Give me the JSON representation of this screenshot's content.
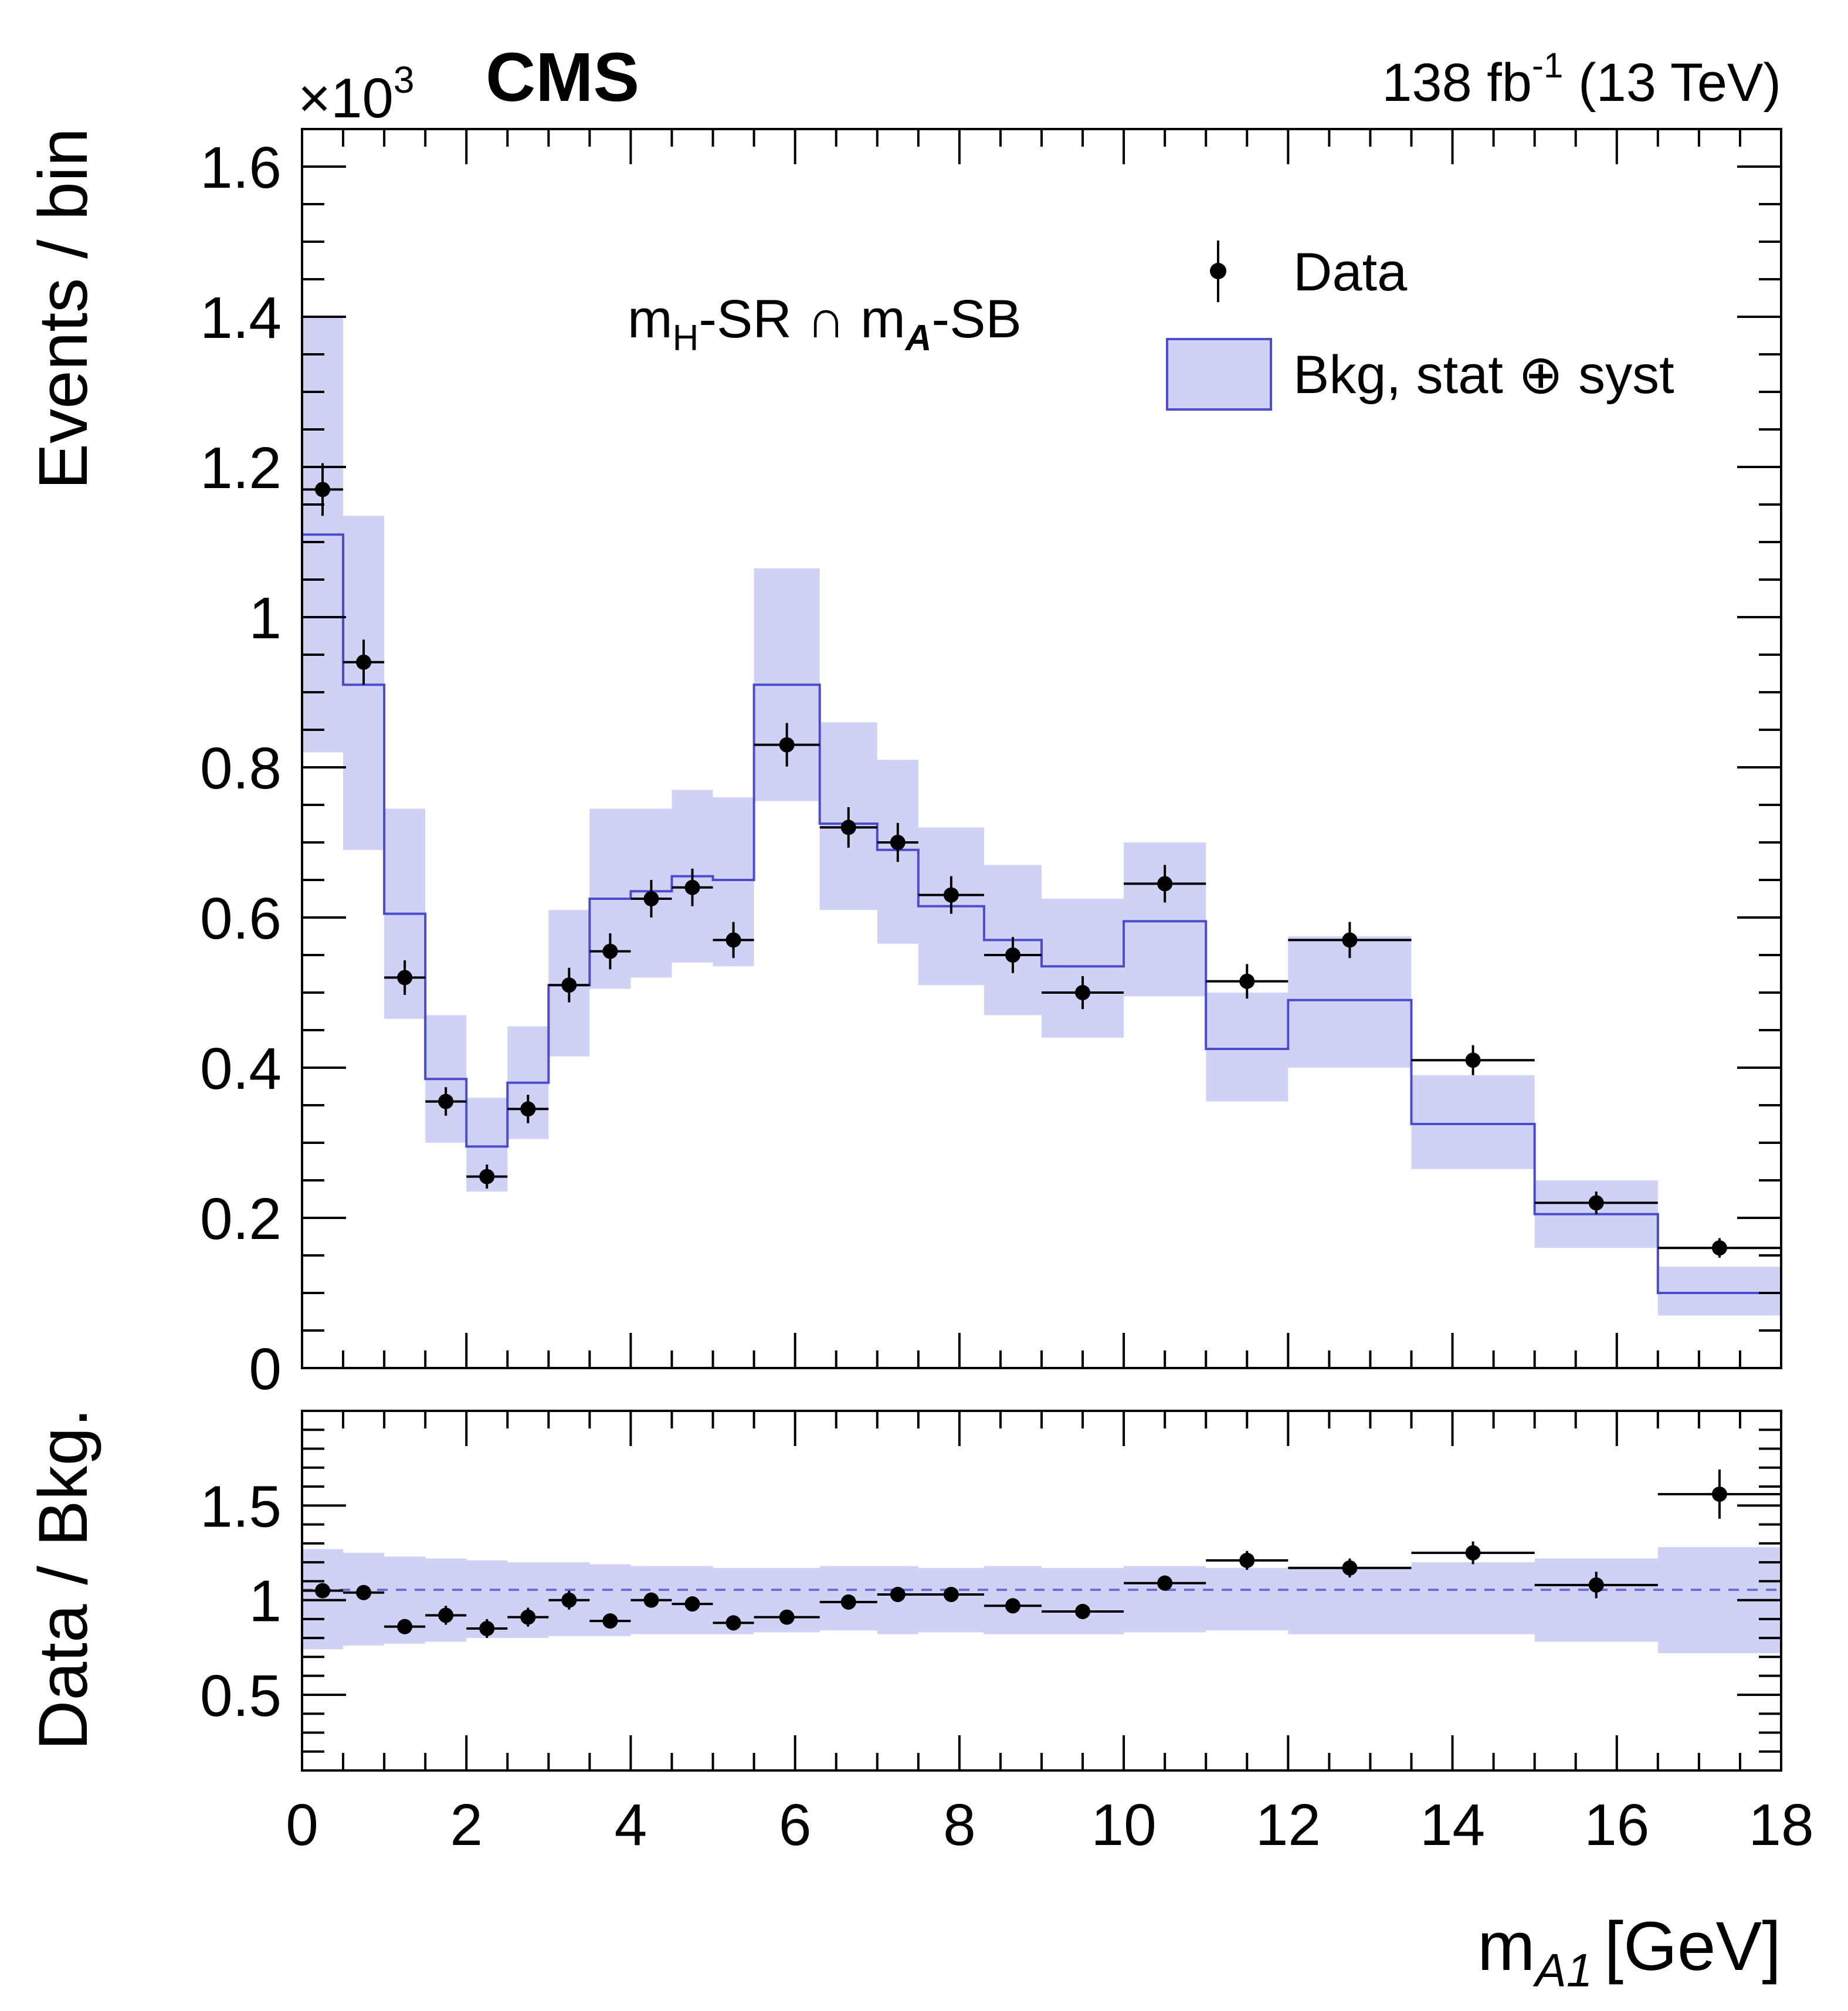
{
  "header": {
    "experiment": "CMS",
    "lumi_prefix": "138 fb",
    "lumi_exp": "-1",
    "lumi_suffix": " (13 TeV)",
    "scale_base": "×10",
    "scale_exp": "3"
  },
  "colors": {
    "band": "#8f93e6",
    "line": "#4a4ccc",
    "data": "#000000"
  },
  "chart_data": [
    {
      "type": "bar",
      "panel": "main",
      "region_label": {
        "p1": "m",
        "s1": "H",
        "p2": "-SR ∩ m",
        "s2": "A",
        "p3": "-SB"
      },
      "ylabel": "Events / bin",
      "xlim": [
        0,
        18
      ],
      "ylim": [
        0,
        1.65
      ],
      "y_scale_note": "×10^3",
      "yticks": [
        0,
        0.2,
        0.4,
        0.6,
        0.8,
        1.0,
        1.2,
        1.4,
        1.6
      ],
      "ytick_labels": [
        "0",
        "0.2",
        "0.4",
        "0.6",
        "0.8",
        "1",
        "1.2",
        "1.4",
        "1.6"
      ],
      "legend": {
        "position": "top-right",
        "entries": [
          "Data",
          "Bkg, stat ⊕ syst"
        ],
        "syst_text": "Bkg, stat ",
        "oplus": "⊕",
        "syst_tail": " syst"
      },
      "bins": [
        [
          0,
          0.5
        ],
        [
          0.5,
          1
        ],
        [
          1,
          1.5
        ],
        [
          1.5,
          2
        ],
        [
          2,
          2.5
        ],
        [
          2.5,
          3
        ],
        [
          3,
          3.5
        ],
        [
          3.5,
          4
        ],
        [
          4,
          4.5
        ],
        [
          4.5,
          5
        ],
        [
          5,
          5.5
        ],
        [
          5.5,
          6.3
        ],
        [
          6.3,
          7
        ],
        [
          7,
          7.5
        ],
        [
          7.5,
          8.3
        ],
        [
          8.3,
          9
        ],
        [
          9,
          10
        ],
        [
          10,
          11
        ],
        [
          11,
          12
        ],
        [
          12,
          13.5
        ],
        [
          13.5,
          15
        ],
        [
          15,
          16.5
        ],
        [
          16.5,
          18
        ]
      ],
      "background": {
        "name": "Bkg, stat ⊕ syst",
        "values": [
          1.11,
          0.91,
          0.605,
          0.385,
          0.295,
          0.38,
          0.51,
          0.625,
          0.635,
          0.655,
          0.65,
          0.91,
          0.725,
          0.69,
          0.615,
          0.57,
          0.535,
          0.595,
          0.425,
          0.49,
          0.325,
          0.205,
          0.1
        ],
        "band_low": [
          0.82,
          0.69,
          0.465,
          0.3,
          0.235,
          0.305,
          0.415,
          0.505,
          0.52,
          0.54,
          0.535,
          0.755,
          0.61,
          0.565,
          0.51,
          0.47,
          0.44,
          0.495,
          0.355,
          0.4,
          0.265,
          0.16,
          0.07
        ],
        "band_high": [
          1.4,
          1.135,
          0.745,
          0.47,
          0.36,
          0.455,
          0.61,
          0.745,
          0.745,
          0.77,
          0.76,
          1.065,
          0.86,
          0.81,
          0.72,
          0.67,
          0.625,
          0.7,
          0.5,
          0.575,
          0.39,
          0.25,
          0.135
        ]
      },
      "data": {
        "name": "Data",
        "values": [
          1.17,
          0.94,
          0.52,
          0.355,
          0.255,
          0.345,
          0.51,
          0.555,
          0.625,
          0.64,
          0.57,
          0.83,
          0.72,
          0.7,
          0.63,
          0.55,
          0.5,
          0.645,
          0.515,
          0.57,
          0.41,
          0.22,
          0.16
        ],
        "err": [
          0.035,
          0.03,
          0.023,
          0.019,
          0.016,
          0.019,
          0.023,
          0.024,
          0.025,
          0.025,
          0.024,
          0.029,
          0.027,
          0.026,
          0.025,
          0.024,
          0.022,
          0.025,
          0.023,
          0.024,
          0.02,
          0.015,
          0.013
        ]
      }
    },
    {
      "type": "bar",
      "panel": "ratio",
      "ylabel": "Data / Bkg.",
      "xlabel_main": "m",
      "xlabel_sub": "A1",
      "xlabel_unit": "[GeV]",
      "xlim": [
        0,
        18
      ],
      "ylim": [
        0.1,
        2.0
      ],
      "yticks": [
        0.5,
        1.0,
        1.5
      ],
      "ytick_labels": [
        "0.5",
        "1",
        "1.5"
      ],
      "xticks": [
        0,
        2,
        4,
        6,
        8,
        10,
        12,
        14,
        16,
        18
      ],
      "xtick_labels": [
        "0",
        "2",
        "4",
        "6",
        "8",
        "10",
        "12",
        "14",
        "16",
        "18"
      ],
      "ratio": [
        1.05,
        1.04,
        0.86,
        0.92,
        0.85,
        0.91,
        1.0,
        0.89,
        1.0,
        0.98,
        0.88,
        0.91,
        0.99,
        1.03,
        1.03,
        0.97,
        0.94,
        1.09,
        1.21,
        1.17,
        1.25,
        1.08,
        1.56
      ],
      "ratio_err": [
        0.03,
        0.03,
        0.04,
        0.05,
        0.05,
        0.05,
        0.05,
        0.04,
        0.04,
        0.04,
        0.04,
        0.03,
        0.04,
        0.04,
        0.04,
        0.04,
        0.04,
        0.04,
        0.05,
        0.05,
        0.06,
        0.07,
        0.13
      ],
      "band_low": [
        0.74,
        0.76,
        0.77,
        0.78,
        0.8,
        0.8,
        0.81,
        0.81,
        0.82,
        0.82,
        0.82,
        0.83,
        0.84,
        0.82,
        0.83,
        0.82,
        0.82,
        0.83,
        0.84,
        0.82,
        0.82,
        0.78,
        0.72
      ],
      "band_high": [
        1.27,
        1.25,
        1.23,
        1.22,
        1.21,
        1.2,
        1.2,
        1.19,
        1.18,
        1.18,
        1.17,
        1.17,
        1.18,
        1.18,
        1.17,
        1.18,
        1.17,
        1.18,
        1.17,
        1.17,
        1.2,
        1.22,
        1.28
      ]
    }
  ]
}
